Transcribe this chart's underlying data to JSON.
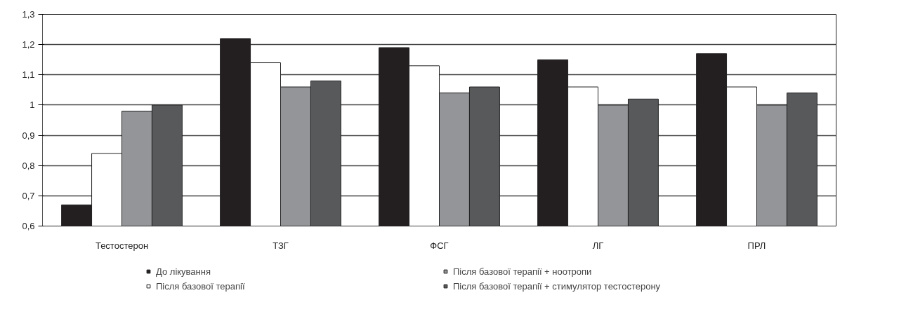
{
  "chart_data": {
    "type": "bar",
    "categories": [
      "Тестостерон",
      "ТЗГ",
      "ФСГ",
      "ЛГ",
      "ПРЛ"
    ],
    "series": [
      {
        "name": "До лікування",
        "color": "#231f20",
        "values": [
          0.67,
          1.22,
          1.19,
          1.15,
          1.17
        ]
      },
      {
        "name": "Після базової терапії",
        "color": "#ffffff",
        "values": [
          0.84,
          1.14,
          1.13,
          1.06,
          1.06
        ]
      },
      {
        "name": "Після базової терапії + ноотропи",
        "color": "#939598",
        "values": [
          0.98,
          1.06,
          1.04,
          1.0,
          1.0
        ]
      },
      {
        "name": "Після базової терапії + стимулятор тестостерону",
        "color": "#58595b",
        "values": [
          1.0,
          1.08,
          1.06,
          1.02,
          1.04
        ]
      }
    ],
    "ylim": [
      0.6,
      1.3
    ],
    "yticks": [
      {
        "value": 0.6,
        "label": "0,6"
      },
      {
        "value": 0.7,
        "label": "0,7"
      },
      {
        "value": 0.8,
        "label": "0,8"
      },
      {
        "value": 0.9,
        "label": "0,9"
      },
      1,
      {
        "value": 1.1,
        "label": "1,1"
      },
      {
        "value": 1.2,
        "label": "1,2"
      },
      {
        "value": 1.3,
        "label": "1,3"
      }
    ],
    "grid": "y",
    "legend": "bottom"
  }
}
